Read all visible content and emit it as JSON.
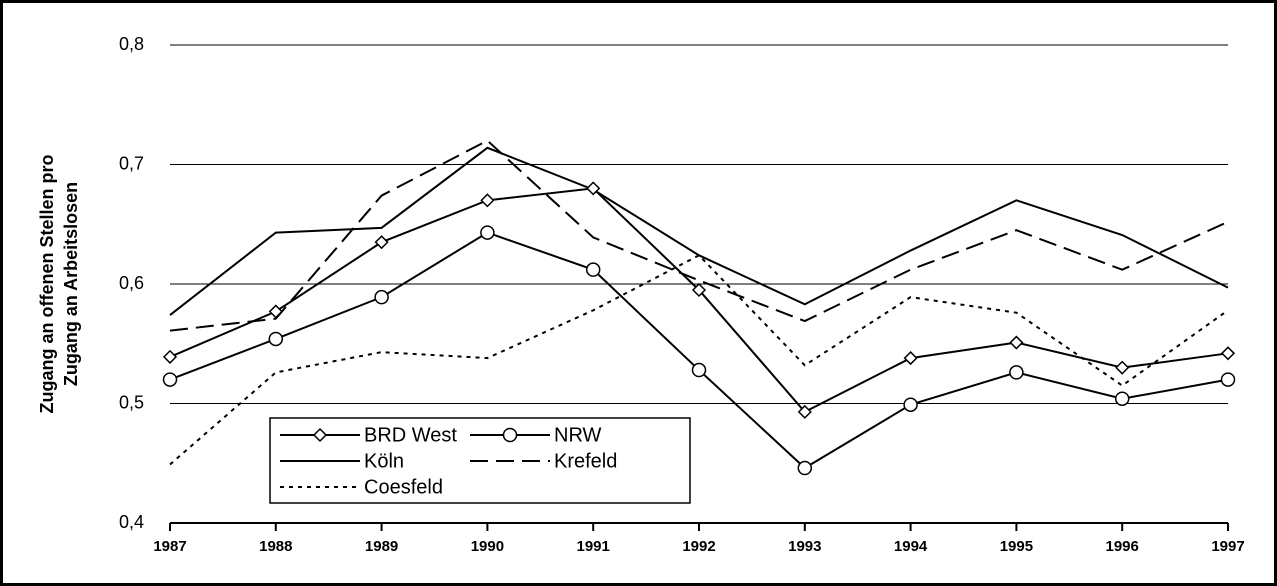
{
  "chart_data": {
    "type": "line",
    "y_label": [
      "Zugang an offenen Stellen pro",
      "Zugang an Arbeitslosen"
    ],
    "x": [
      1987,
      1988,
      1989,
      1990,
      1991,
      1992,
      1993,
      1994,
      1995,
      1996,
      1997
    ],
    "xlim": [
      1987,
      1997
    ],
    "ylim": [
      0.4,
      0.8
    ],
    "yticks": [
      {
        "value": 0.4,
        "label": "0,4"
      },
      {
        "value": 0.5,
        "label": "0,5"
      },
      {
        "value": 0.6,
        "label": "0,6"
      },
      {
        "value": 0.7,
        "label": "0,7"
      },
      {
        "value": 0.8,
        "label": "0,8"
      }
    ],
    "grid": true,
    "legend": "lower left",
    "series": [
      {
        "name": "BRD West",
        "color": "#000000",
        "dash": "solid",
        "marker": "diamond",
        "values": [
          0.539,
          0.577,
          0.635,
          0.67,
          0.68,
          0.595,
          0.493,
          0.538,
          0.551,
          0.53,
          0.542
        ]
      },
      {
        "name": "NRW",
        "color": "#000000",
        "dash": "solid",
        "marker": "circle",
        "values": [
          0.52,
          0.554,
          0.589,
          0.643,
          0.612,
          0.528,
          0.446,
          0.499,
          0.526,
          0.504,
          0.52
        ]
      },
      {
        "name": "Köln",
        "color": "#000000",
        "dash": "solid",
        "marker": "none",
        "values": [
          0.574,
          0.643,
          0.647,
          0.714,
          0.679,
          0.624,
          0.583,
          0.628,
          0.67,
          0.641,
          0.597
        ]
      },
      {
        "name": "Krefeld",
        "color": "#000000",
        "dash": "dashed",
        "marker": "none",
        "values": [
          0.561,
          0.571,
          0.674,
          0.72,
          0.639,
          0.603,
          0.569,
          0.612,
          0.645,
          0.612,
          0.652
        ]
      },
      {
        "name": "Coesfeld",
        "color": "#000000",
        "dash": "dotted",
        "marker": "none",
        "values": [
          0.449,
          0.526,
          0.543,
          0.538,
          0.578,
          0.624,
          0.532,
          0.589,
          0.576,
          0.515,
          0.578
        ]
      }
    ]
  }
}
